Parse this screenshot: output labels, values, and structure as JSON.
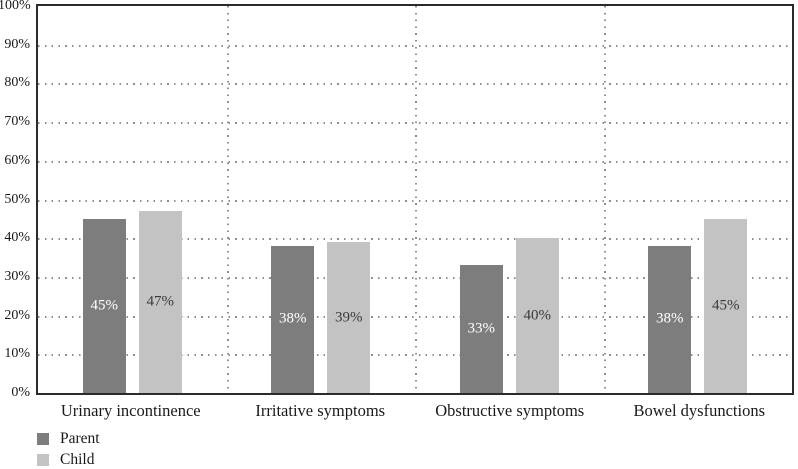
{
  "chart_data": {
    "type": "bar",
    "title": "",
    "categories": [
      "Urinary incontinence",
      "Irritative symptoms",
      "Obstructive symptoms",
      "Bowel dysfunctions"
    ],
    "series": [
      {
        "name": "Parent",
        "color": "#7d7d7d",
        "label_color": "#ffffff",
        "values": [
          45,
          38,
          33,
          38
        ]
      },
      {
        "name": "Child",
        "color": "#c3c3c3",
        "label_color": "#3a3a3a",
        "values": [
          47,
          39,
          40,
          45
        ]
      }
    ],
    "value_suffix": "%",
    "bar_labels": [
      [
        "45%",
        "38%",
        "33%",
        "38%"
      ],
      [
        "47%",
        "39%",
        "40%",
        "45%"
      ]
    ],
    "y_ticks": [
      "0%",
      "10%",
      "20%",
      "30%",
      "40%",
      "50%",
      "60%",
      "70%",
      "80%",
      "90%",
      "100%"
    ],
    "ylim": [
      0,
      100
    ],
    "xlabel": "",
    "ylabel": "",
    "grid": "dotted",
    "legend_position": "bottom-left",
    "legend_entries": [
      "Parent",
      "Child"
    ]
  },
  "colors": {
    "background": "#ffffff",
    "axis_border": "#2b2b2b",
    "gridline": "#8f8f8f",
    "text": "#1a1a1a",
    "parent_bar": "#7d7d7d",
    "child_bar": "#c3c3c3"
  }
}
